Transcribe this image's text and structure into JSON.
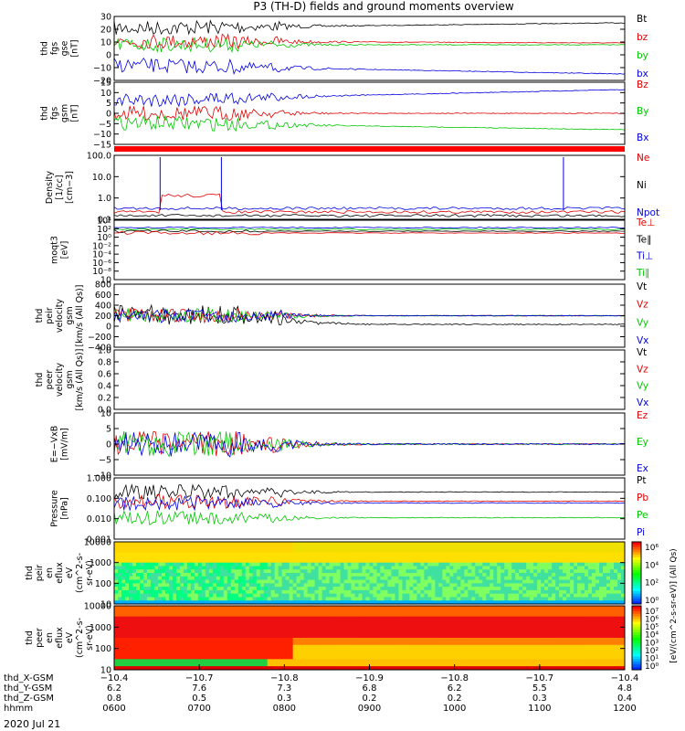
{
  "title": "P3 (TH-D) fields and ground moments overview",
  "date_label": "2020 Jul 21",
  "colors": {
    "black": "#000000",
    "red": "#e00000",
    "green": "#00c800",
    "blue": "#0000e0"
  },
  "panels": [
    {
      "id": "fgs-gse",
      "ylabel": [
        "thd",
        "fgs",
        "gse",
        "[nT]"
      ],
      "ticks": [
        "30",
        "20",
        "10",
        "0",
        "−10",
        "−20"
      ],
      "legend": [
        {
          "text": "Bt",
          "color": "black"
        },
        {
          "text": "bz",
          "color": "red"
        },
        {
          "text": "by",
          "color": "green"
        },
        {
          "text": "bx",
          "color": "blue"
        }
      ]
    },
    {
      "id": "fgs-gsm",
      "ylabel": [
        "thd",
        "fgs",
        "gsm",
        "[nT]"
      ],
      "ticks": [
        "15",
        "10",
        "5",
        "0",
        "−5",
        "−10",
        "−15"
      ],
      "legend": [
        {
          "text": "Bz",
          "color": "red"
        },
        {
          "text": "By",
          "color": "green"
        },
        {
          "text": "Bx",
          "color": "blue"
        }
      ]
    },
    {
      "id": "density",
      "ylabel": [
        "Density",
        "[1/cc]",
        "[cm−3]"
      ],
      "ticks": [
        "100.0",
        "10.0",
        "1.0",
        "0.1"
      ],
      "legend": [
        {
          "text": "Ne",
          "color": "red"
        },
        {
          "text": "Ni",
          "color": "black"
        },
        {
          "text": "Npot",
          "color": "blue"
        }
      ]
    },
    {
      "id": "temp",
      "ylabel": [
        "moqt3",
        "[eV]"
      ],
      "ticks": [
        "10⁴",
        "10²",
        "10⁰",
        "10⁻²",
        "10⁻⁴",
        "10⁻⁶",
        "10⁻⁸",
        "10"
      ],
      "legend": [
        {
          "text": "Te⊥",
          "color": "red"
        },
        {
          "text": "Te∥",
          "color": "black"
        },
        {
          "text": "Ti⊥",
          "color": "blue"
        },
        {
          "text": "Ti∥",
          "color": "green"
        }
      ]
    },
    {
      "id": "peir-vel",
      "ylabel": [
        "thd",
        "peir",
        "velocity",
        "gsm",
        "[km/s (All Qs)]"
      ],
      "ticks": [
        "800",
        "600",
        "400",
        "200",
        "0",
        "−200",
        "−400"
      ],
      "legend": [
        {
          "text": "Vt",
          "color": "black"
        },
        {
          "text": "Vz",
          "color": "red"
        },
        {
          "text": "Vy",
          "color": "green"
        },
        {
          "text": "Vx",
          "color": "blue"
        }
      ]
    },
    {
      "id": "peer-vel",
      "ylabel": [
        "thd",
        "peer",
        "velocity",
        "gsm",
        "[km/s (All Qs)]"
      ],
      "ticks": [
        "1.0",
        "0.8",
        "0.6",
        "0.4",
        "0.2",
        "0.0"
      ],
      "legend": [
        {
          "text": "Vt",
          "color": "black"
        },
        {
          "text": "Vz",
          "color": "red"
        },
        {
          "text": "Vy",
          "color": "green"
        },
        {
          "text": "Vx",
          "color": "blue"
        }
      ]
    },
    {
      "id": "efield",
      "ylabel": [
        "E=−VxB",
        "[mV/m]"
      ],
      "ticks": [
        "10",
        "5",
        "0",
        "−5",
        "−10"
      ],
      "legend": [
        {
          "text": "Ez",
          "color": "red"
        },
        {
          "text": "Ey",
          "color": "green"
        },
        {
          "text": "Ex",
          "color": "blue"
        }
      ]
    },
    {
      "id": "pressure",
      "ylabel": [
        "Pressure",
        "[nPa]"
      ],
      "ticks": [
        "1.000",
        "0.100",
        "0.010",
        "0.001"
      ],
      "legend": [
        {
          "text": "Pt",
          "color": "black"
        },
        {
          "text": "Pb",
          "color": "red"
        },
        {
          "text": "Pe",
          "color": "green"
        },
        {
          "text": "Pi",
          "color": "blue"
        }
      ]
    },
    {
      "id": "peir-spec",
      "ylabel": [
        "thd",
        "peir",
        "en",
        "eflux",
        "eV",
        "(cm^2-s-",
        "sr-eV)"
      ],
      "ticks": [
        "10000",
        "1000",
        "100",
        "10"
      ],
      "legend": []
    },
    {
      "id": "peer-spec",
      "ylabel": [
        "thd",
        "peer",
        "en",
        "eflux",
        "eV",
        "(cm^2-s-",
        "sr-eV)"
      ],
      "ticks": [
        "10000",
        "1000",
        "100",
        "10"
      ],
      "legend": []
    }
  ],
  "colorbar": {
    "ticks_top": [
      "10⁶",
      "10⁴",
      "10²",
      "10⁰"
    ],
    "ticks_bottom": [
      "10⁷",
      "10⁶",
      "10⁵",
      "10⁴",
      "10³",
      "10²",
      "10¹",
      "10⁰"
    ],
    "label": "[eV/(cm^2-s-sr-eV)] (All Qs)"
  },
  "xaxis": {
    "row_labels": [
      "thd_X-GSM",
      "thd_Y-GSM",
      "thd_Z-GSM",
      "hhmm"
    ],
    "columns": [
      [
        "−10.4",
        "6.2",
        "0.8",
        "0600"
      ],
      [
        "−10.7",
        "7.6",
        "0.5",
        "0700"
      ],
      [
        "−10.8",
        "7.3",
        "0.3",
        "0800"
      ],
      [
        "−10.9",
        "6.8",
        "0.2",
        "0900"
      ],
      [
        "−10.8",
        "6.2",
        "0.2",
        "1000"
      ],
      [
        "−10.7",
        "5.5",
        "0.3",
        "1100"
      ],
      [
        "−10.4",
        "4.8",
        "0.4",
        "1200"
      ]
    ]
  },
  "chart_data": {
    "type": "line",
    "x": [
      "0600",
      "0700",
      "0800",
      "0900",
      "1000",
      "1100",
      "1200"
    ],
    "series": [
      {
        "name": "Bt",
        "values": [
          14,
          18,
          10,
          12,
          17,
          20,
          22
        ]
      },
      {
        "name": "bz",
        "values": [
          6,
          8,
          3,
          3,
          4,
          5,
          8
        ]
      },
      {
        "name": "by",
        "values": [
          2,
          4,
          5,
          3,
          4,
          5,
          6
        ]
      },
      {
        "name": "bx",
        "values": [
          -8,
          -6,
          -4,
          -6,
          -12,
          -16,
          -19
        ]
      },
      {
        "name": "Vt",
        "values": [
          150,
          300,
          70,
          40,
          40,
          40,
          40
        ]
      }
    ]
  }
}
